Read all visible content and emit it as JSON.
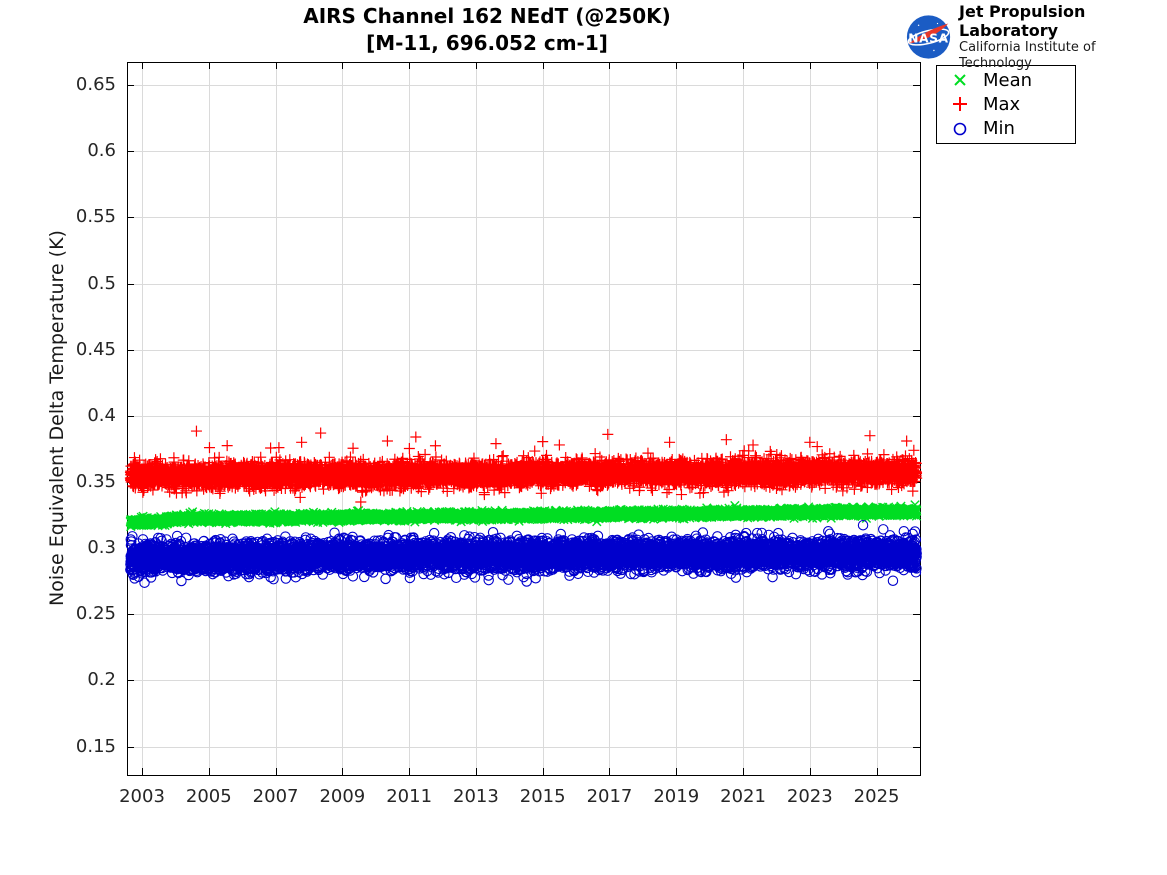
{
  "header": {
    "logo": {
      "agency": "NASA",
      "org_line1": "Jet Propulsion Laboratory",
      "org_line2": "California Institute of Technology",
      "nasa_blue": "#1b5cc4",
      "nasa_red": "#e8382a"
    }
  },
  "chart_data": {
    "type": "scatter",
    "title": "AIRS Channel 162 NEdT (@250K)",
    "subtitle": "[M-11, 696.052 cm-1]",
    "xlabel": "",
    "ylabel": "Noise Equivalent Delta Temperature (K)",
    "xlim": [
      2002.55,
      2026.3
    ],
    "ylim": [
      0.1285,
      0.6675
    ],
    "xticks": [
      2003,
      2005,
      2007,
      2009,
      2011,
      2013,
      2015,
      2017,
      2019,
      2021,
      2023,
      2025
    ],
    "xtick_labels": [
      "2003",
      "2005",
      "2007",
      "2009",
      "2011",
      "2013",
      "2015",
      "2017",
      "2019",
      "2021",
      "2023",
      "2025"
    ],
    "yticks": [
      0.15,
      0.2,
      0.25,
      0.3,
      0.35,
      0.4,
      0.45,
      0.5,
      0.55,
      0.6,
      0.65
    ],
    "ytick_labels": [
      "0.15",
      "0.2",
      "0.25",
      "0.3",
      "0.35",
      "0.4",
      "0.45",
      "0.5",
      "0.55",
      "0.6",
      "0.65"
    ],
    "grid": true,
    "grid_color": "#dadada",
    "axis_color": "#000000",
    "tick_label_color": "#262626",
    "legend_position": "outside-top-right",
    "seed": 20250901,
    "x_start": 2002.65,
    "x_end": 2026.2,
    "samples_per_year": 365,
    "series": [
      {
        "name": "Mean",
        "marker": "x",
        "color": "#00dd22",
        "jitter": 0.0013,
        "trend": [
          [
            2002.65,
            0.3195
          ],
          [
            2003.77,
            0.3203
          ],
          [
            2003.8,
            0.322
          ],
          [
            2006,
            0.3226
          ],
          [
            2010,
            0.3236
          ],
          [
            2014,
            0.3247
          ],
          [
            2018,
            0.3257
          ],
          [
            2022,
            0.3267
          ],
          [
            2026.2,
            0.3277
          ]
        ],
        "outliers": [
          [
            2016.62,
            0.32
          ]
        ]
      },
      {
        "name": "Max",
        "marker": "+",
        "color": "#ff0000",
        "jitter": 0.0042,
        "tail": {
          "prob": 0.013,
          "min": 0.003,
          "max": 0.014,
          "up_bias": 0.8
        },
        "trend": [
          [
            2002.65,
            0.3545
          ],
          [
            2008,
            0.3553
          ],
          [
            2014,
            0.3561
          ],
          [
            2020,
            0.3568
          ],
          [
            2026.2,
            0.3575
          ]
        ],
        "outliers": [
          [
            2004.63,
            0.3885
          ],
          [
            2005.02,
            0.376
          ],
          [
            2005.55,
            0.3775
          ],
          [
            2007.1,
            0.376
          ],
          [
            2007.78,
            0.38
          ],
          [
            2008.35,
            0.387
          ],
          [
            2009.32,
            0.3755
          ],
          [
            2010.35,
            0.381
          ],
          [
            2011.2,
            0.384
          ],
          [
            2013.25,
            0.342
          ],
          [
            2013.6,
            0.379
          ],
          [
            2015.0,
            0.3805
          ],
          [
            2015.5,
            0.378
          ],
          [
            2016.65,
            0.3435
          ],
          [
            2016.95,
            0.386
          ],
          [
            2018.8,
            0.38
          ],
          [
            2020.5,
            0.382
          ],
          [
            2021.3,
            0.378
          ],
          [
            2023.0,
            0.38
          ],
          [
            2024.8,
            0.385
          ],
          [
            2025.9,
            0.381
          ]
        ]
      },
      {
        "name": "Min",
        "marker": "o",
        "color": "#0000cc",
        "jitter": 0.0052,
        "tail": {
          "prob": 0.02,
          "min": 0.002,
          "max": 0.009,
          "up_bias": 0.15
        },
        "trend": [
          [
            2002.65,
            0.2925
          ],
          [
            2008,
            0.2938
          ],
          [
            2014,
            0.2948
          ],
          [
            2020,
            0.2955
          ],
          [
            2026.2,
            0.296
          ]
        ],
        "outliers": []
      }
    ]
  }
}
